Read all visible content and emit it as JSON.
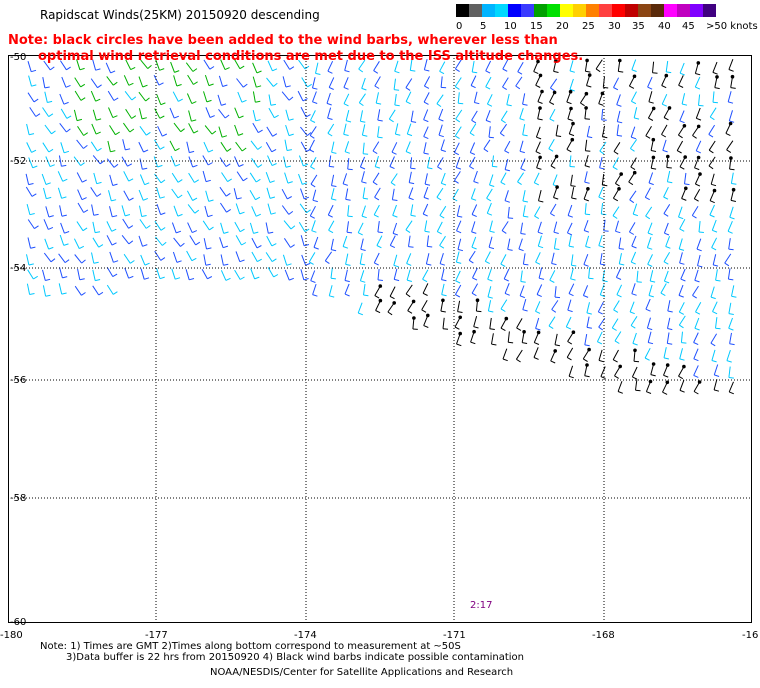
{
  "title": "Rapidscat Winds(25KM) 20150920 descending",
  "note": {
    "line1": "Note: black circles have been added to the wind barbs, wherever less than",
    "line2": "optimal wind retrieval conditions are met due to the ISS altitude changes."
  },
  "legend": {
    "unit": "knots",
    "colors": [
      "#000000",
      "#606060",
      "#00b4ff",
      "#00d8ff",
      "#0000ff",
      "#3a3aff",
      "#00a000",
      "#00e000",
      "#ffff00",
      "#ffd000",
      "#ff8000",
      "#ff4040",
      "#ff0000",
      "#c00000",
      "#8b4513",
      "#5a2a0a",
      "#ff00ff",
      "#c000c0",
      "#8000ff",
      "#400080"
    ],
    "labels": [
      "0",
      "5",
      "10",
      "15",
      "20",
      "25",
      "30",
      "35",
      "40",
      "45",
      ">50 knots"
    ]
  },
  "map": {
    "lat_labels": [
      "-50",
      "-52",
      "-54",
      "-56",
      "-58",
      "-60"
    ],
    "lon_labels": [
      "-180",
      "-177",
      "-174",
      "-171",
      "-168",
      "-16"
    ],
    "time_label": "2:17"
  },
  "footnote": {
    "line1": "Note: 1) Times are GMT 2)Times along bottom correspond to measurement at ~50S",
    "line2": "3)Data buffer is 22 hrs from 20150920 4) Black wind barbs indicate possible contamination"
  },
  "credit": "NOAA/NESDIS/Center for Satellite Applications and Research"
}
